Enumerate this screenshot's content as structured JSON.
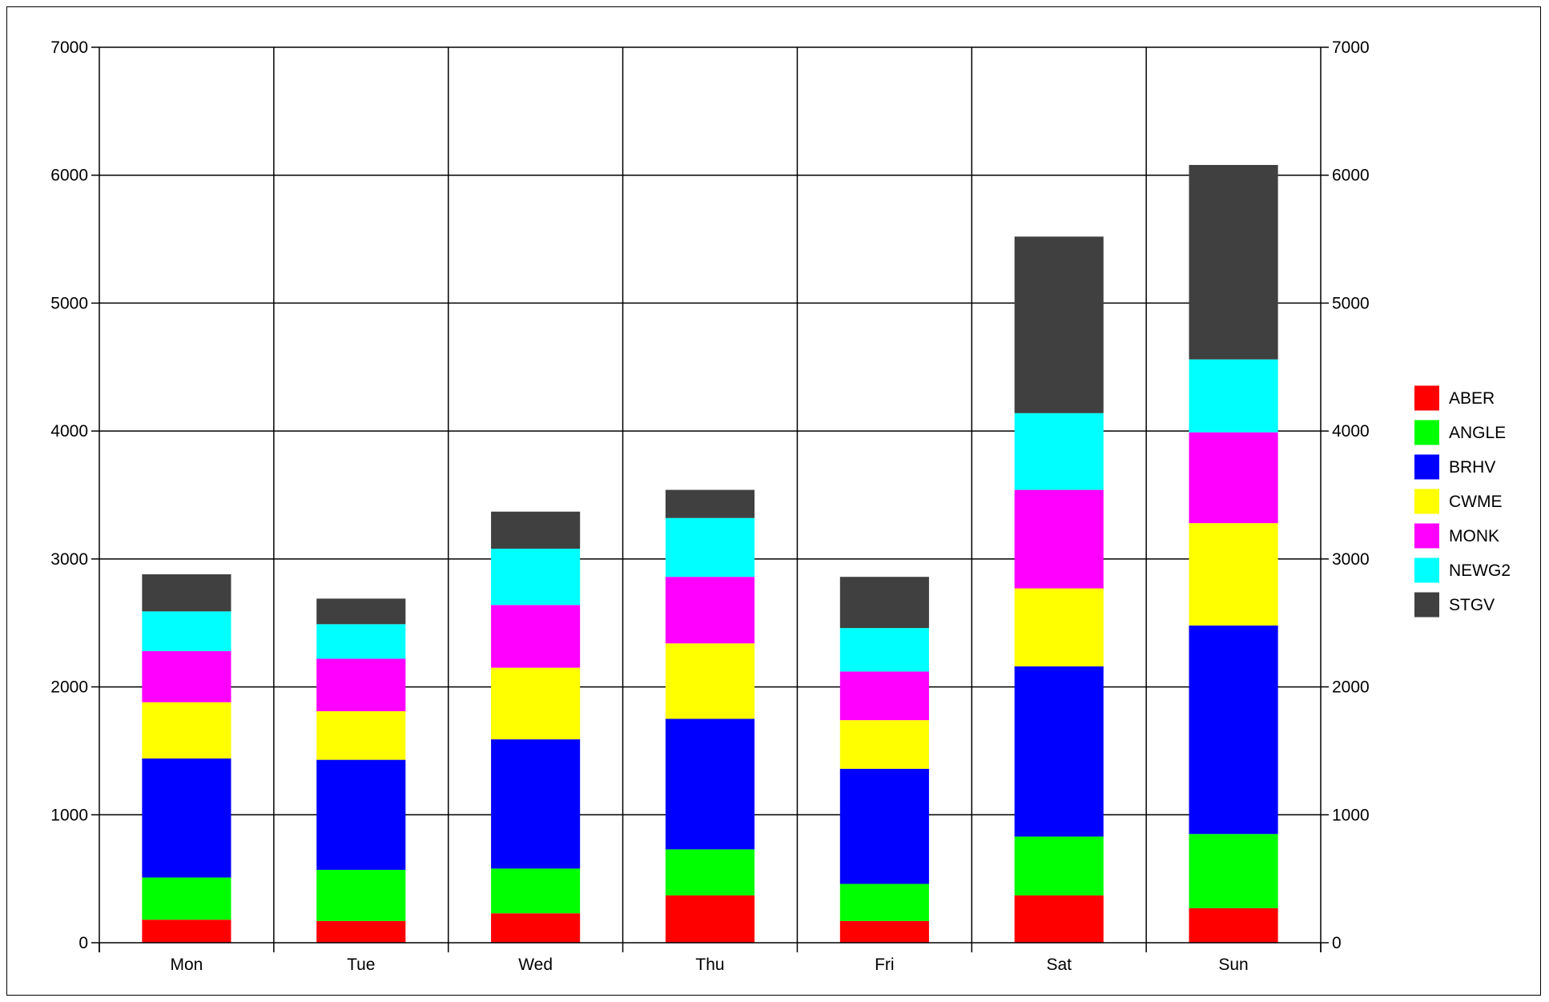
{
  "chart_data": {
    "type": "bar",
    "stacked": true,
    "title": "",
    "xlabel": "",
    "ylabel": "",
    "categories": [
      "Mon",
      "Tue",
      "Wed",
      "Thu",
      "Fri",
      "Sat",
      "Sun"
    ],
    "ylim": [
      0,
      7000
    ],
    "y_ticks": [
      "0",
      "1000",
      "2000",
      "3000",
      "4000",
      "5000",
      "6000",
      "7000"
    ],
    "y_axes": "left and right (mirrored)",
    "grid": true,
    "legend_position": "right",
    "series": [
      {
        "name": "ABER",
        "color": "#ff0000",
        "values": [
          180,
          170,
          230,
          370,
          170,
          370,
          270
        ]
      },
      {
        "name": "ANGLE",
        "color": "#00ff00",
        "values": [
          330,
          400,
          350,
          360,
          290,
          460,
          580
        ]
      },
      {
        "name": "BRHV",
        "color": "#0000ff",
        "values": [
          930,
          860,
          1010,
          1020,
          900,
          1330,
          1630
        ]
      },
      {
        "name": "CWME",
        "color": "#ffff00",
        "values": [
          440,
          380,
          560,
          590,
          380,
          610,
          800
        ]
      },
      {
        "name": "MONK",
        "color": "#ff00ff",
        "values": [
          400,
          410,
          490,
          520,
          380,
          770,
          710
        ]
      },
      {
        "name": "NEWG2",
        "color": "#00ffff",
        "values": [
          310,
          270,
          440,
          460,
          340,
          600,
          570
        ]
      },
      {
        "name": "STGV",
        "color": "#404040",
        "values": [
          290,
          200,
          290,
          220,
          400,
          1380,
          1520
        ]
      }
    ]
  }
}
